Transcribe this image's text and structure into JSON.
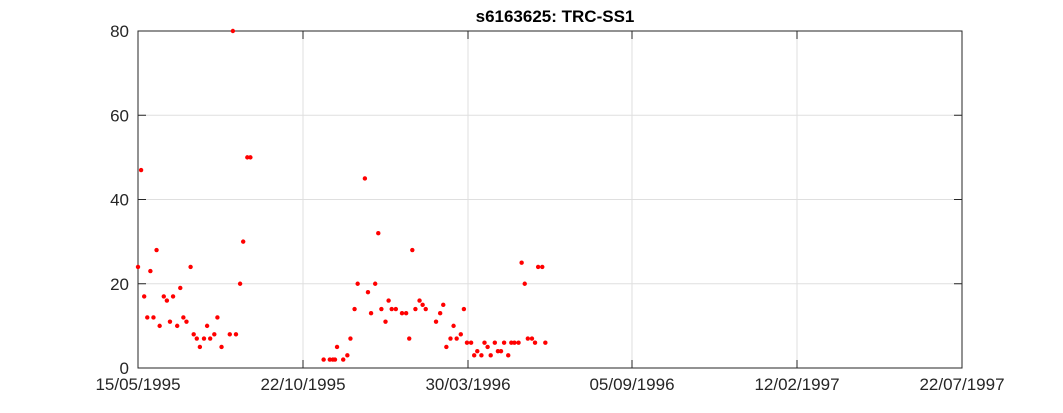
{
  "chart_data": {
    "type": "scatter",
    "title": "s6163625: TRC-SS1",
    "xlabel": "",
    "ylabel": "",
    "x_axis_type": "date",
    "xlim": [
      "1995-05-15",
      "1997-07-22"
    ],
    "ylim": [
      0,
      80
    ],
    "x_ticks": [
      "1995-05-15",
      "1995-10-22",
      "1996-03-30",
      "1996-09-05",
      "1997-02-12",
      "1997-07-22"
    ],
    "x_tick_labels": [
      "15/05/1995",
      "22/10/1995",
      "30/03/1996",
      "05/09/1996",
      "12/02/1997",
      "22/07/1997"
    ],
    "y_ticks": [
      0,
      20,
      40,
      60,
      80
    ],
    "y_tick_labels": [
      "0",
      "20",
      "40",
      "60",
      "80"
    ],
    "grid": true,
    "marker_color": "#ff0000",
    "series": [
      {
        "points": [
          [
            "1995-05-15",
            24
          ],
          [
            "1995-05-18",
            47
          ],
          [
            "1995-05-21",
            17
          ],
          [
            "1995-05-24",
            12
          ],
          [
            "1995-05-27",
            23
          ],
          [
            "1995-05-30",
            12
          ],
          [
            "1995-06-02",
            28
          ],
          [
            "1995-06-05",
            10
          ],
          [
            "1995-06-09",
            17
          ],
          [
            "1995-06-12",
            16
          ],
          [
            "1995-06-15",
            11
          ],
          [
            "1995-06-18",
            17
          ],
          [
            "1995-06-22",
            10
          ],
          [
            "1995-06-25",
            19
          ],
          [
            "1995-06-28",
            12
          ],
          [
            "1995-07-01",
            11
          ],
          [
            "1995-07-05",
            24
          ],
          [
            "1995-07-08",
            8
          ],
          [
            "1995-07-11",
            7
          ],
          [
            "1995-07-14",
            5
          ],
          [
            "1995-07-18",
            7
          ],
          [
            "1995-07-21",
            10
          ],
          [
            "1995-07-24",
            7
          ],
          [
            "1995-07-28",
            8
          ],
          [
            "1995-07-31",
            12
          ],
          [
            "1995-08-04",
            5
          ],
          [
            "1995-08-12",
            8
          ],
          [
            "1995-08-15",
            80
          ],
          [
            "1995-08-18",
            8
          ],
          [
            "1995-08-22",
            20
          ],
          [
            "1995-08-25",
            30
          ],
          [
            "1995-08-29",
            50
          ],
          [
            "1995-09-01",
            50
          ],
          [
            "1995-11-11",
            2
          ],
          [
            "1995-11-17",
            2
          ],
          [
            "1995-11-20",
            2
          ],
          [
            "1995-11-22",
            2
          ],
          [
            "1995-11-24",
            5
          ],
          [
            "1995-11-30",
            2
          ],
          [
            "1995-12-04",
            3
          ],
          [
            "1995-12-07",
            7
          ],
          [
            "1995-12-11",
            14
          ],
          [
            "1995-12-14",
            20
          ],
          [
            "1995-12-21",
            45
          ],
          [
            "1995-12-24",
            18
          ],
          [
            "1995-12-27",
            13
          ],
          [
            "1995-12-31",
            20
          ],
          [
            "1996-01-03",
            32
          ],
          [
            "1996-01-06",
            14
          ],
          [
            "1996-01-10",
            11
          ],
          [
            "1996-01-13",
            16
          ],
          [
            "1996-01-16",
            14
          ],
          [
            "1996-01-20",
            14
          ],
          [
            "1996-01-26",
            13
          ],
          [
            "1996-01-30",
            13
          ],
          [
            "1996-02-02",
            7
          ],
          [
            "1996-02-05",
            28
          ],
          [
            "1996-02-08",
            14
          ],
          [
            "1996-02-12",
            16
          ],
          [
            "1996-02-15",
            15
          ],
          [
            "1996-02-18",
            14
          ],
          [
            "1996-02-28",
            11
          ],
          [
            "1996-03-03",
            13
          ],
          [
            "1996-03-06",
            15
          ],
          [
            "1996-03-09",
            5
          ],
          [
            "1996-03-13",
            7
          ],
          [
            "1996-03-16",
            10
          ],
          [
            "1996-03-19",
            7
          ],
          [
            "1996-03-23",
            8
          ],
          [
            "1996-03-26",
            14
          ],
          [
            "1996-03-29",
            6
          ],
          [
            "1996-04-02",
            6
          ],
          [
            "1996-04-05",
            3
          ],
          [
            "1996-04-08",
            4
          ],
          [
            "1996-04-12",
            3
          ],
          [
            "1996-04-15",
            6
          ],
          [
            "1996-04-18",
            5
          ],
          [
            "1996-04-21",
            3
          ],
          [
            "1996-04-25",
            6
          ],
          [
            "1996-04-28",
            4
          ],
          [
            "1996-05-01",
            4
          ],
          [
            "1996-05-04",
            6
          ],
          [
            "1996-05-08",
            3
          ],
          [
            "1996-05-11",
            6
          ],
          [
            "1996-05-14",
            6
          ],
          [
            "1996-05-18",
            6
          ],
          [
            "1996-05-21",
            25
          ],
          [
            "1996-05-24",
            20
          ],
          [
            "1996-05-27",
            7
          ],
          [
            "1996-05-31",
            7
          ],
          [
            "1996-06-03",
            6
          ],
          [
            "1996-06-06",
            24
          ],
          [
            "1996-06-10",
            24
          ],
          [
            "1996-06-13",
            6
          ]
        ]
      }
    ]
  }
}
